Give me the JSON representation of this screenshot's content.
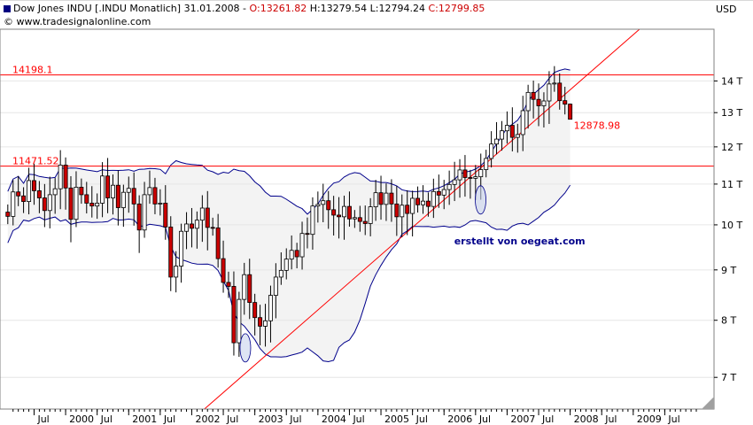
{
  "header": {
    "symbol": "Dow Jones INDU [.INDU Monatlich]",
    "date": "31.01.2008",
    "open": "O:13261.82",
    "high": "H:13279.54",
    "low": "L:12794.24",
    "close": "C:12799.85",
    "source": "© www.tradesignalonline.com"
  },
  "colors": {
    "up_body": "#ffffff",
    "down_body": "#cc0000",
    "wick": "#000000",
    "band": "#00008b",
    "band_fill": "#f3f3f3",
    "level": "#ff0000",
    "trend": "#ff0000",
    "watermark": "#00008b"
  },
  "chart_data": {
    "type": "candlestick",
    "currency": "USD",
    "y_scale": "log",
    "ylim": [
      6500,
      15800
    ],
    "xlim": [
      1999.1,
      2010.0
    ],
    "y_ticks": [
      {
        "value": 7000,
        "label": "7 T"
      },
      {
        "value": 8000,
        "label": "8 T"
      },
      {
        "value": 9000,
        "label": "9 T"
      },
      {
        "value": 10000,
        "label": "10 T"
      },
      {
        "value": 11000,
        "label": "11 T"
      },
      {
        "value": 12000,
        "label": "12 T"
      },
      {
        "value": 13000,
        "label": "13 T"
      },
      {
        "value": 14000,
        "label": "14 T"
      }
    ],
    "x_ticks": [
      {
        "t": 1999.5,
        "label": "Jul"
      },
      {
        "t": 2000.0,
        "label": "2000"
      },
      {
        "t": 2000.5,
        "label": "Jul"
      },
      {
        "t": 2001.0,
        "label": "2001"
      },
      {
        "t": 2001.5,
        "label": "Jul"
      },
      {
        "t": 2002.0,
        "label": "2002"
      },
      {
        "t": 2002.5,
        "label": "Jul"
      },
      {
        "t": 2003.0,
        "label": "2003"
      },
      {
        "t": 2003.5,
        "label": "Jul"
      },
      {
        "t": 2004.0,
        "label": "2004"
      },
      {
        "t": 2004.5,
        "label": "Jul"
      },
      {
        "t": 2005.0,
        "label": "2005"
      },
      {
        "t": 2005.5,
        "label": "Jul"
      },
      {
        "t": 2006.0,
        "label": "2006"
      },
      {
        "t": 2006.5,
        "label": "Jul"
      },
      {
        "t": 2007.0,
        "label": "2007"
      },
      {
        "t": 2007.5,
        "label": "Jul"
      },
      {
        "t": 2008.0,
        "label": "2008"
      },
      {
        "t": 2008.5,
        "label": "Jul"
      },
      {
        "t": 2009.0,
        "label": "2009"
      },
      {
        "t": 2009.5,
        "label": "Jul"
      }
    ],
    "levels": [
      {
        "value": 14198.1,
        "label": "14198.1"
      },
      {
        "value": 11471.52,
        "label": "11471.52"
      }
    ],
    "last_price_label": {
      "value": 12878.98,
      "label": "12878.98"
    },
    "trend_line": [
      [
        2002.2,
        6500
      ],
      [
        2009.1,
        15800
      ]
    ],
    "annotation": "erstellt von oegeat.com",
    "highlights": [
      {
        "t": 2002.85,
        "value": 7500
      },
      {
        "t": 2006.58,
        "value": 10600
      }
    ],
    "series": {
      "dates": [
        1999.083,
        1999.167,
        1999.25,
        1999.333,
        1999.417,
        1999.5,
        1999.583,
        1999.667,
        1999.75,
        1999.833,
        1999.917,
        2000.0,
        2000.083,
        2000.167,
        2000.25,
        2000.333,
        2000.417,
        2000.5,
        2000.583,
        2000.667,
        2000.75,
        2000.833,
        2000.917,
        2001.0,
        2001.083,
        2001.167,
        2001.25,
        2001.333,
        2001.417,
        2001.5,
        2001.583,
        2001.667,
        2001.75,
        2001.833,
        2001.917,
        2002.0,
        2002.083,
        2002.167,
        2002.25,
        2002.333,
        2002.417,
        2002.5,
        2002.583,
        2002.667,
        2002.75,
        2002.833,
        2002.917,
        2003.0,
        2003.083,
        2003.167,
        2003.25,
        2003.333,
        2003.417,
        2003.5,
        2003.583,
        2003.667,
        2003.75,
        2003.833,
        2003.917,
        2004.0,
        2004.083,
        2004.167,
        2004.25,
        2004.333,
        2004.417,
        2004.5,
        2004.583,
        2004.667,
        2004.75,
        2004.833,
        2004.917,
        2005.0,
        2005.083,
        2005.167,
        2005.25,
        2005.333,
        2005.417,
        2005.5,
        2005.583,
        2005.667,
        2005.75,
        2005.833,
        2005.917,
        2006.0,
        2006.083,
        2006.167,
        2006.25,
        2006.333,
        2006.417,
        2006.5,
        2006.583,
        2006.667,
        2006.75,
        2006.833,
        2006.917,
        2007.0,
        2007.083,
        2007.167,
        2007.25,
        2007.333,
        2007.417,
        2007.5,
        2007.583,
        2007.667,
        2007.75,
        2007.833,
        2007.917,
        2008.0
      ],
      "close": [
        10200,
        10800,
        10700,
        10560,
        11090,
        10830,
        10650,
        10340,
        10730,
        10880,
        11500,
        10900,
        10130,
        10920,
        10730,
        10520,
        10450,
        10520,
        11210,
        10650,
        10970,
        10410,
        10790,
        10890,
        10500,
        9880,
        10730,
        10910,
        10500,
        10520,
        9950,
        8850,
        9080,
        9850,
        10020,
        9920,
        10110,
        10400,
        9940,
        9930,
        9240,
        8740,
        8660,
        7590,
        8400,
        8900,
        8340,
        8050,
        7890,
        7990,
        8480,
        8850,
        8990,
        9230,
        9420,
        9280,
        9800,
        9780,
        10450,
        10490,
        10580,
        10360,
        10230,
        10190,
        10440,
        10140,
        10170,
        10080,
        10030,
        10430,
        10780,
        10490,
        10770,
        10500,
        10190,
        10470,
        10270,
        10640,
        10480,
        10570,
        10440,
        10810,
        10720,
        10860,
        10990,
        11110,
        11370,
        11170,
        11150,
        11190,
        11380,
        11680,
        12080,
        12220,
        12460,
        12620,
        12270,
        12350,
        13060,
        13630,
        13410,
        13210,
        13360,
        13900,
        13930,
        13370,
        13260,
        12800
      ]
    }
  }
}
